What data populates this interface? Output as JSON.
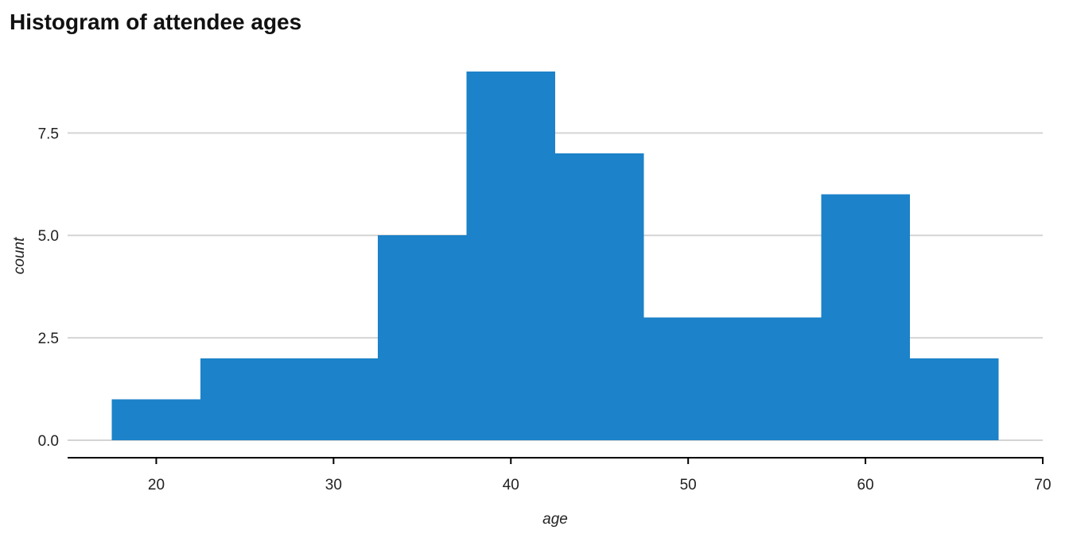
{
  "chart_data": {
    "type": "bar",
    "title": "Histogram of attendee ages",
    "xlabel": "age",
    "ylabel": "count",
    "bins": [
      {
        "x0": 17.5,
        "x1": 22.5,
        "count": 1
      },
      {
        "x0": 22.5,
        "x1": 27.5,
        "count": 2
      },
      {
        "x0": 27.5,
        "x1": 32.5,
        "count": 2
      },
      {
        "x0": 32.5,
        "x1": 37.5,
        "count": 5
      },
      {
        "x0": 37.5,
        "x1": 42.5,
        "count": 9
      },
      {
        "x0": 42.5,
        "x1": 47.5,
        "count": 7
      },
      {
        "x0": 47.5,
        "x1": 52.5,
        "count": 3
      },
      {
        "x0": 52.5,
        "x1": 57.5,
        "count": 3
      },
      {
        "x0": 57.5,
        "x1": 62.5,
        "count": 6
      },
      {
        "x0": 62.5,
        "x1": 67.5,
        "count": 2
      }
    ],
    "xlim": [
      15,
      70
    ],
    "ylim": [
      0,
      9
    ],
    "xticks": [
      20,
      30,
      40,
      50,
      60,
      70
    ],
    "xtick_labels": [
      "20",
      "30",
      "40",
      "50",
      "60",
      "70"
    ],
    "yticks": [
      0,
      2.5,
      5,
      7.5
    ],
    "ytick_labels": [
      "0.0",
      "2.5",
      "5.0",
      "7.5"
    ],
    "grid": "horizontal",
    "bar_color": "#1c82c9",
    "grid_color": "#d4d4d4",
    "axis_color": "#000000"
  }
}
